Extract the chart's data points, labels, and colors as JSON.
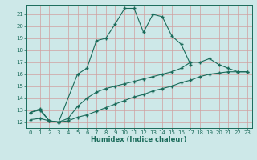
{
  "title": "",
  "xlabel": "Humidex (Indice chaleur)",
  "bg_color": "#cde8e8",
  "grid_color": "#c8d8d8",
  "line_color": "#1a6b5a",
  "x_values": [
    0,
    1,
    2,
    3,
    4,
    5,
    6,
    7,
    8,
    9,
    10,
    11,
    12,
    13,
    14,
    15,
    16,
    17,
    18,
    19,
    20,
    21,
    22,
    23
  ],
  "line1_y": [
    12.8,
    13.1,
    12.1,
    12.0,
    null,
    16.0,
    16.5,
    18.8,
    19.0,
    20.2,
    21.5,
    21.5,
    19.5,
    21.0,
    20.8,
    19.2,
    18.5,
    16.8,
    null,
    null,
    null,
    null,
    null,
    null
  ],
  "line2_y": [
    12.8,
    13.0,
    12.1,
    12.0,
    12.3,
    13.3,
    14.0,
    14.5,
    14.8,
    15.0,
    15.2,
    15.4,
    15.6,
    15.8,
    16.0,
    16.2,
    16.5,
    17.0,
    17.0,
    17.3,
    16.8,
    16.5,
    16.2,
    16.2
  ],
  "line3_y": [
    12.2,
    12.3,
    12.1,
    12.0,
    12.1,
    12.4,
    12.6,
    12.9,
    13.2,
    13.5,
    13.8,
    14.1,
    14.3,
    14.6,
    14.8,
    15.0,
    15.3,
    15.5,
    15.8,
    16.0,
    16.1,
    16.2,
    16.2,
    16.2
  ],
  "ylim": [
    11.5,
    21.8
  ],
  "xlim": [
    -0.5,
    23.5
  ],
  "yticks": [
    12,
    13,
    14,
    15,
    16,
    17,
    18,
    19,
    20,
    21
  ],
  "xticks": [
    0,
    1,
    2,
    3,
    4,
    5,
    6,
    7,
    8,
    9,
    10,
    11,
    12,
    13,
    14,
    15,
    16,
    17,
    18,
    19,
    20,
    21,
    22,
    23
  ],
  "title_fontsize": 7.0,
  "axis_fontsize": 6.0,
  "tick_fontsize": 5.0,
  "marker": "+",
  "marker_size": 3.5,
  "line_width": 0.8
}
